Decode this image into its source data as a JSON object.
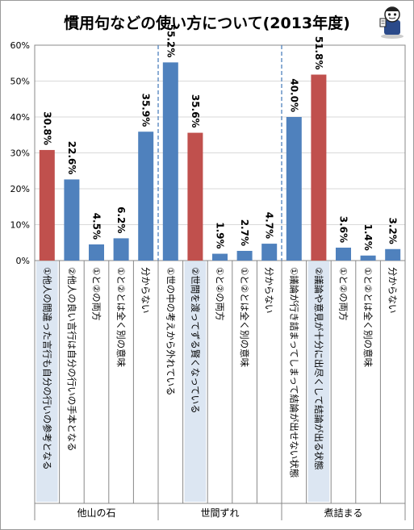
{
  "title": "慣用句などの使い方について(2013年度)",
  "chart_data": {
    "type": "bar",
    "ylim": [
      0,
      60
    ],
    "yticks": [
      "0%",
      "10%",
      "20%",
      "30%",
      "40%",
      "50%",
      "60%"
    ],
    "grid": true,
    "groups": [
      {
        "name": "他山の石",
        "items": [
          {
            "label": "①他人の間違った言行も自分の行いの参考となる",
            "value": 30.8,
            "value_label": "30.8%",
            "correct": true
          },
          {
            "label": "②他人の良い言行は自分の行いの手本となる",
            "value": 22.6,
            "value_label": "22.6%",
            "correct": false
          },
          {
            "label": "①と②の両方",
            "value": 4.5,
            "value_label": "4.5%",
            "correct": false
          },
          {
            "label": "①と②とは全く別の意味",
            "value": 6.2,
            "value_label": "6.2%",
            "correct": false
          },
          {
            "label": "分からない",
            "value": 35.9,
            "value_label": "35.9%",
            "correct": false
          }
        ]
      },
      {
        "name": "世間ずれ",
        "items": [
          {
            "label": "①世の中の考えから外れている",
            "value": 55.2,
            "value_label": "55.2%",
            "correct": false
          },
          {
            "label": "②世間を渡ってずる賢くなっている",
            "value": 35.6,
            "value_label": "35.6%",
            "correct": true
          },
          {
            "label": "①と②の両方",
            "value": 1.9,
            "value_label": "1.9%",
            "correct": false
          },
          {
            "label": "①と②とは全く別の意味",
            "value": 2.7,
            "value_label": "2.7%",
            "correct": false
          },
          {
            "label": "分からない",
            "value": 4.7,
            "value_label": "4.7%",
            "correct": false
          }
        ]
      },
      {
        "name": "煮詰まる",
        "items": [
          {
            "label": "①議論が行き詰まってしまって結論が出せない状態",
            "value": 40.0,
            "value_label": "40.0%",
            "correct": false
          },
          {
            "label": "②議論や意見が十分に出尽くして結論が出る状態",
            "value": 51.8,
            "value_label": "51.8%",
            "correct": true
          },
          {
            "label": "①と②の両方",
            "value": 3.6,
            "value_label": "3.6%",
            "correct": false
          },
          {
            "label": "①と②とは全く別の意味",
            "value": 1.4,
            "value_label": "1.4%",
            "correct": false
          },
          {
            "label": "分からない",
            "value": 3.2,
            "value_label": "3.2%",
            "correct": false
          }
        ]
      }
    ],
    "colors": {
      "correct": "#c0504d",
      "other": "#4f81bd",
      "highlight_bg": "#dce6f2",
      "separator": "#4f81bd",
      "grid": "#d9d9d9"
    }
  }
}
